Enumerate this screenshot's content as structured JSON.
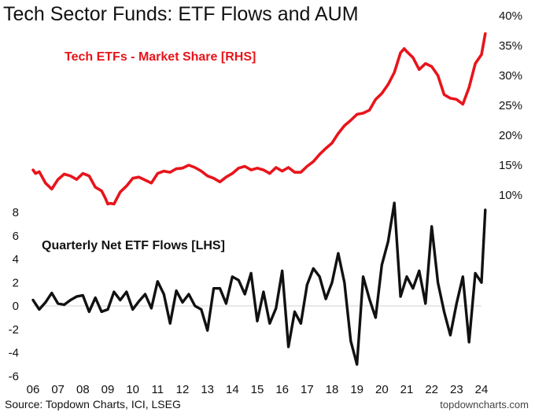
{
  "chart_data": {
    "type": "line",
    "title": "Tech Sector Funds: ETF Flows and AUM",
    "source": "Source: Topdown Charts, ICI, LSEG",
    "credit": "topdowncharts.com",
    "x_ticks": [
      "06",
      "07",
      "08",
      "09",
      "10",
      "11",
      "12",
      "13",
      "14",
      "15",
      "16",
      "17",
      "18",
      "19",
      "20",
      "21",
      "22",
      "23",
      "24"
    ],
    "xlim": [
      2006,
      2024.5
    ],
    "right_axis": {
      "ticks": [
        "10%",
        "15%",
        "20%",
        "25%",
        "30%",
        "35%",
        "40%"
      ],
      "tick_values": [
        10,
        15,
        20,
        25,
        30,
        35,
        40
      ],
      "ylim": [
        0,
        40
      ]
    },
    "left_axis": {
      "ticks": [
        "8",
        "6",
        "4",
        "2",
        "0",
        "-2",
        "-4",
        "-6"
      ],
      "tick_values": [
        8,
        6,
        4,
        2,
        0,
        -2,
        -4,
        -6
      ],
      "ylim": [
        -6,
        8
      ]
    },
    "series": [
      {
        "name": "Tech ETFs - Market Share [RHS]",
        "axis": "right",
        "color": "#e8141b",
        "x": [
          2006.0,
          2006.1,
          2006.25,
          2006.5,
          2006.75,
          2007.0,
          2007.25,
          2007.5,
          2007.75,
          2008.0,
          2008.25,
          2008.5,
          2008.75,
          2008.9,
          2009.0,
          2009.1,
          2009.25,
          2009.5,
          2009.75,
          2010.0,
          2010.25,
          2010.5,
          2010.75,
          2011.0,
          2011.25,
          2011.5,
          2011.75,
          2012.0,
          2012.25,
          2012.5,
          2012.75,
          2013.0,
          2013.25,
          2013.5,
          2013.75,
          2014.0,
          2014.25,
          2014.5,
          2014.75,
          2015.0,
          2015.25,
          2015.5,
          2015.75,
          2016.0,
          2016.25,
          2016.5,
          2016.75,
          2017.0,
          2017.25,
          2017.5,
          2017.75,
          2018.0,
          2018.25,
          2018.5,
          2018.75,
          2019.0,
          2019.25,
          2019.5,
          2019.75,
          2020.0,
          2020.25,
          2020.5,
          2020.75,
          2020.9,
          2021.0,
          2021.25,
          2021.5,
          2021.75,
          2022.0,
          2022.25,
          2022.5,
          2022.75,
          2023.0,
          2023.25,
          2023.5,
          2023.75,
          2024.0,
          2024.15
        ],
        "values": [
          14.2,
          13.6,
          13.9,
          12.0,
          11.0,
          12.6,
          13.5,
          13.2,
          12.6,
          13.6,
          13.2,
          11.3,
          10.7,
          9.5,
          8.5,
          8.6,
          8.5,
          10.5,
          11.5,
          12.8,
          13.0,
          12.5,
          12.0,
          13.6,
          14.0,
          13.8,
          14.4,
          14.5,
          15.0,
          14.6,
          14.0,
          13.2,
          12.8,
          12.2,
          13.0,
          13.6,
          14.5,
          14.8,
          14.2,
          14.5,
          14.2,
          13.6,
          14.6,
          14.0,
          14.6,
          13.8,
          13.8,
          14.8,
          15.6,
          16.8,
          17.8,
          18.7,
          20.3,
          21.6,
          22.5,
          23.5,
          23.7,
          24.2,
          26.0,
          27.0,
          28.5,
          30.5,
          33.8,
          34.5,
          34.0,
          33.0,
          31.0,
          32.0,
          31.5,
          30.0,
          26.8,
          26.2,
          26.0,
          25.2,
          28.0,
          32.0,
          33.5,
          37.0
        ]
      },
      {
        "name": "Quarterly Net ETF Flows [LHS]",
        "axis": "left",
        "color": "#111111",
        "x": [
          2006.0,
          2006.25,
          2006.5,
          2006.75,
          2007.0,
          2007.25,
          2007.5,
          2007.75,
          2008.0,
          2008.25,
          2008.5,
          2008.75,
          2009.0,
          2009.25,
          2009.5,
          2009.75,
          2010.0,
          2010.25,
          2010.5,
          2010.75,
          2011.0,
          2011.25,
          2011.5,
          2011.75,
          2012.0,
          2012.25,
          2012.5,
          2012.75,
          2013.0,
          2013.25,
          2013.5,
          2013.75,
          2014.0,
          2014.25,
          2014.5,
          2014.75,
          2015.0,
          2015.25,
          2015.5,
          2015.75,
          2016.0,
          2016.25,
          2016.5,
          2016.75,
          2017.0,
          2017.25,
          2017.5,
          2017.75,
          2018.0,
          2018.25,
          2018.5,
          2018.75,
          2019.0,
          2019.25,
          2019.5,
          2019.75,
          2020.0,
          2020.25,
          2020.5,
          2020.75,
          2021.0,
          2021.25,
          2021.5,
          2021.75,
          2022.0,
          2022.25,
          2022.5,
          2022.75,
          2023.0,
          2023.25,
          2023.5,
          2023.75,
          2024.0,
          2024.15
        ],
        "values": [
          0.5,
          -0.3,
          0.3,
          1.1,
          0.2,
          0.1,
          0.5,
          0.8,
          0.9,
          -0.5,
          0.7,
          -0.5,
          -0.3,
          1.2,
          0.5,
          1.2,
          -0.3,
          0.4,
          1.0,
          -0.2,
          2.1,
          1.0,
          -1.5,
          1.3,
          0.3,
          1.0,
          0.0,
          -0.3,
          -2.1,
          1.5,
          1.5,
          0.2,
          2.5,
          2.2,
          1.0,
          2.8,
          -1.3,
          1.2,
          -1.5,
          -0.2,
          3.0,
          -3.5,
          -0.5,
          -1.5,
          1.8,
          3.2,
          2.5,
          0.6,
          2.0,
          4.5,
          2.0,
          -3.0,
          -5.0,
          2.5,
          0.6,
          -1.0,
          3.5,
          5.5,
          8.8,
          0.8,
          2.5,
          1.5,
          3.0,
          0.2,
          6.8,
          2.0,
          -0.5,
          -2.5,
          0.2,
          2.5,
          -3.1,
          2.8,
          2.0,
          8.2
        ]
      }
    ],
    "annotations": [
      "Tech ETFs - Market Share [RHS]",
      "Quarterly Net ETF Flows [LHS]"
    ]
  }
}
